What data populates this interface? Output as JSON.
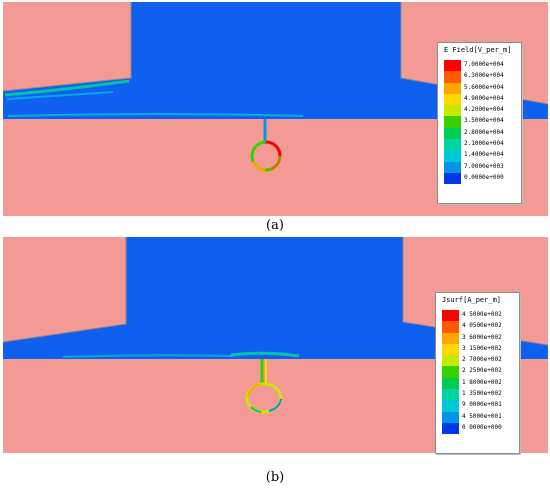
{
  "panels": [
    {
      "caption": "(a)",
      "legend": {
        "title": "E Field[V_per_m]",
        "labels": [
          "7.0000e+004",
          "6.3000e+004",
          "5.6000e+004",
          "4.9000e+004",
          "4.2000e+004",
          "3.5000e+004",
          "2.8000e+004",
          "2.1000e+004",
          "1.4000e+004",
          "7.0000e+003",
          "0.0000e+000"
        ]
      }
    },
    {
      "caption": "(b)",
      "legend": {
        "title": "Jsurf[A_per_m]",
        "labels": [
          "4 5000e+002",
          "4 0500e+002",
          "3 6000e+002",
          "3 1500e+002",
          "2 7000e+002",
          "2 2500e+002",
          "1 8000e+002",
          "1 3500e+002",
          "9 0000e+001",
          "4 5000e+001",
          "0 0000e+000"
        ]
      }
    }
  ],
  "colors": {
    "background_region": "#f49a95",
    "low_field_region": "#1060f0",
    "scale": [
      "#ff0000",
      "#ff5a00",
      "#ffa500",
      "#ffd800",
      "#c8e800",
      "#36d100",
      "#00cc55",
      "#00d6a0",
      "#00c8d8",
      "#0096e6",
      "#0038e8"
    ]
  }
}
